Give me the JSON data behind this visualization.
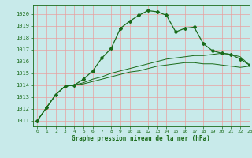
{
  "title": "Graphe pression niveau de la mer (hPa)",
  "bg_color": "#c8eaea",
  "grid_color": "#e8a0a0",
  "line_color": "#1a6b1a",
  "xlim": [
    -0.5,
    23
  ],
  "ylim": [
    1010.5,
    1020.8
  ],
  "yticks": [
    1011,
    1012,
    1013,
    1014,
    1015,
    1016,
    1017,
    1018,
    1019,
    1020
  ],
  "xticks": [
    0,
    1,
    2,
    3,
    4,
    5,
    6,
    7,
    8,
    9,
    10,
    11,
    12,
    13,
    14,
    15,
    16,
    17,
    18,
    19,
    20,
    21,
    22,
    23
  ],
  "series1_x": [
    0,
    1,
    2,
    3,
    4,
    5,
    6,
    7,
    8,
    9,
    10,
    11,
    12,
    13,
    14,
    15,
    16,
    17,
    18,
    19,
    20,
    21,
    22,
    23
  ],
  "series1_y": [
    1011.0,
    1012.1,
    1013.2,
    1013.9,
    1014.0,
    1014.5,
    1015.2,
    1016.3,
    1017.1,
    1018.8,
    1019.4,
    1019.9,
    1020.3,
    1020.2,
    1019.9,
    1018.5,
    1018.8,
    1018.9,
    1017.5,
    1016.9,
    1016.7,
    1016.6,
    1016.2,
    1015.7
  ],
  "series2_x": [
    0,
    1,
    2,
    3,
    4,
    5,
    6,
    7,
    8,
    9,
    10,
    11,
    12,
    13,
    14,
    15,
    16,
    17,
    18,
    19,
    20,
    21,
    22,
    23
  ],
  "series2_y": [
    1011.0,
    1012.1,
    1013.2,
    1013.9,
    1014.0,
    1014.2,
    1014.5,
    1014.7,
    1015.0,
    1015.2,
    1015.4,
    1015.6,
    1015.8,
    1016.0,
    1016.2,
    1016.3,
    1016.4,
    1016.5,
    1016.5,
    1016.6,
    1016.7,
    1016.6,
    1016.4,
    1015.7
  ],
  "series3_x": [
    0,
    1,
    2,
    3,
    4,
    5,
    6,
    7,
    8,
    9,
    10,
    11,
    12,
    13,
    14,
    15,
    16,
    17,
    18,
    19,
    20,
    21,
    22,
    23
  ],
  "series3_y": [
    1011.0,
    1012.1,
    1013.2,
    1013.9,
    1014.0,
    1014.1,
    1014.3,
    1014.5,
    1014.7,
    1014.9,
    1015.1,
    1015.2,
    1015.4,
    1015.6,
    1015.7,
    1015.8,
    1015.9,
    1015.9,
    1015.8,
    1015.8,
    1015.7,
    1015.6,
    1015.5,
    1015.6
  ],
  "fig_width": 3.2,
  "fig_height": 2.0,
  "dpi": 100
}
